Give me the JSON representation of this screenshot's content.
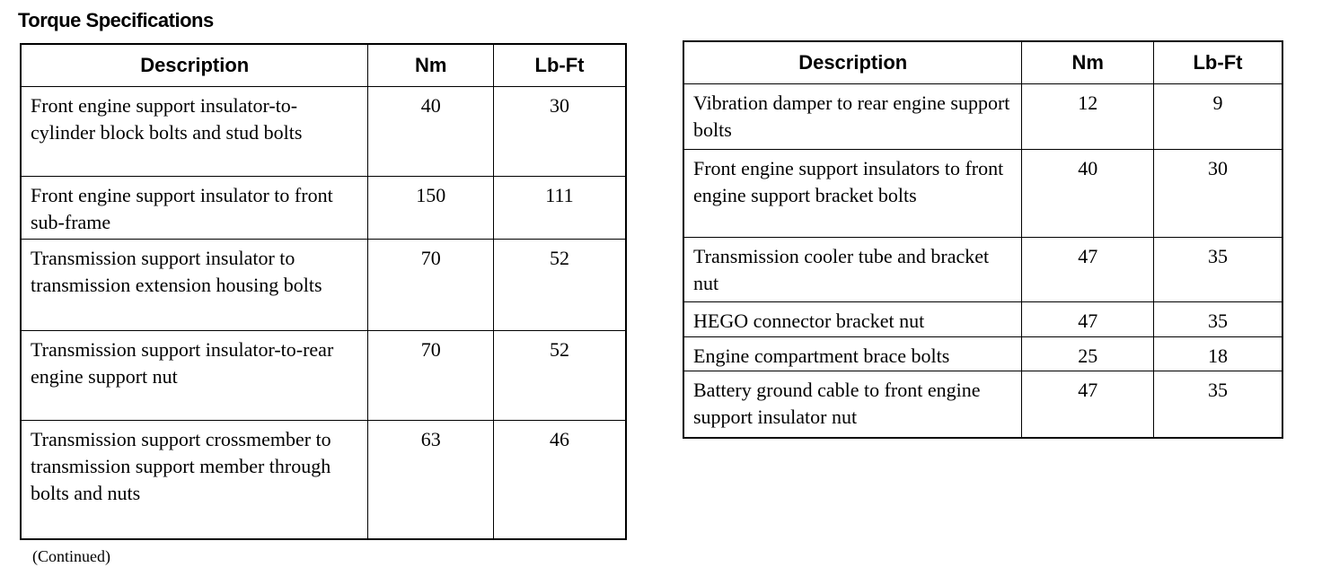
{
  "title": "Torque Specifications",
  "headers": {
    "description": "Description",
    "nm": "Nm",
    "lbft": "Lb-Ft"
  },
  "left_table": [
    {
      "description": "Front engine support insulator-to-cylinder block bolts and stud bolts",
      "nm": "40",
      "lbft": "30"
    },
    {
      "description": "Front engine support insulator to front sub-frame",
      "nm": "150",
      "lbft": "111"
    },
    {
      "description": "Transmission support insulator to transmission extension housing bolts",
      "nm": "70",
      "lbft": "52"
    },
    {
      "description": "Transmission support insulator-to-rear engine support nut",
      "nm": "70",
      "lbft": "52"
    },
    {
      "description": "Transmission support crossmember to transmission support member through bolts and nuts",
      "nm": "63",
      "lbft": "46"
    }
  ],
  "right_table": [
    {
      "description": "Vibration damper to rear engine support bolts",
      "nm": "12",
      "lbft": "9"
    },
    {
      "description": "Front engine support insulators to front engine support bracket bolts",
      "nm": "40",
      "lbft": "30"
    },
    {
      "description": "Transmission cooler tube and bracket nut",
      "nm": "47",
      "lbft": "35"
    },
    {
      "description": "HEGO connector bracket nut",
      "nm": "47",
      "lbft": "35"
    },
    {
      "description": "Engine compartment brace bolts",
      "nm": "25",
      "lbft": "18"
    },
    {
      "description": "Battery ground cable to front engine support insulator nut",
      "nm": "47",
      "lbft": "35"
    }
  ],
  "continued": "(Continued)"
}
